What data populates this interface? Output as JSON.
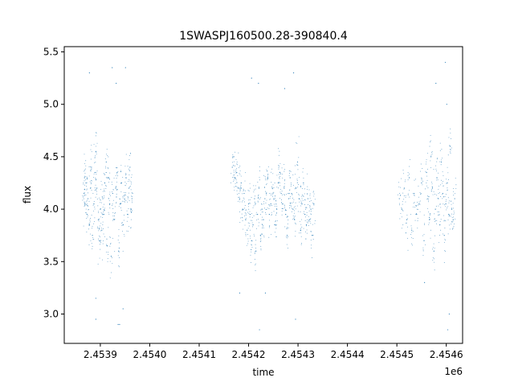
{
  "chart_data": {
    "type": "scatter",
    "title": "1SWASPJ160500.28-390840.4",
    "xlabel": "time",
    "ylabel": "flux",
    "x_offset_label": "1e6",
    "xlim": [
      2453827,
      2454633
    ],
    "ylim": [
      2.72,
      5.55
    ],
    "x_ticks": [
      2453900,
      2454000,
      2454100,
      2454200,
      2454300,
      2454400,
      2454500,
      2454600
    ],
    "x_tick_labels": [
      "2.4539",
      "2.4540",
      "2.4541",
      "2.4542",
      "2.4543",
      "2.4544",
      "2.4545",
      "2.4546"
    ],
    "y_ticks": [
      3.0,
      3.5,
      4.0,
      4.5,
      5.0,
      5.5
    ],
    "y_tick_labels": [
      "3.0",
      "3.5",
      "4.0",
      "4.5",
      "5.0",
      "5.5"
    ],
    "grid": false,
    "marker_color": "#1f77b4",
    "series": [
      {
        "x": [
          2453867,
          2453868,
          2453869,
          2453871,
          2453873,
          2453875,
          2453878,
          2453880,
          2453882,
          2453884,
          2453887,
          2453889,
          2453891,
          2453893,
          2453896,
          2453898,
          2453900,
          2453903,
          2453905,
          2453907,
          2453909,
          2453912,
          2453914,
          2453917,
          2453919,
          2453922,
          2453925,
          2453928,
          2453931,
          2453934,
          2453937,
          2453940,
          2453943,
          2453946,
          2453949,
          2453952,
          2453955,
          2453958,
          2453960,
          2453962,
          2453964
        ],
        "y": [
          4.15,
          4.3,
          4.05,
          4.25,
          3.95,
          4.1,
          3.85,
          4.2,
          4.4,
          3.75,
          4.05,
          4.35,
          4.55,
          4.2,
          3.9,
          3.7,
          4.0,
          3.8,
          4.1,
          3.95,
          4.25,
          4.45,
          3.65,
          4.3,
          4.05,
          3.55,
          4.15,
          3.9,
          4.2,
          4.35,
          3.6,
          4.05,
          4.25,
          3.85,
          4.1,
          4.3,
          3.95,
          4.2,
          4.4,
          4.0,
          4.1
        ]
      },
      {
        "x": [
          2454167,
          2454170,
          2454173,
          2454176,
          2454179,
          2454182,
          2454185,
          2454188,
          2454191,
          2454194,
          2454197,
          2454200,
          2454203,
          2454206,
          2454209,
          2454212,
          2454215,
          2454218,
          2454221,
          2454224,
          2454227,
          2454230,
          2454233,
          2454236,
          2454239,
          2454242,
          2454245,
          2454248,
          2454251,
          2454254,
          2454257,
          2454260,
          2454263,
          2454266,
          2454269,
          2454272,
          2454275,
          2454278,
          2454281,
          2454284,
          2454287,
          2454290,
          2454293,
          2454296,
          2454299,
          2454302,
          2454305,
          2454308,
          2454311,
          2454314,
          2454317,
          2454320,
          2454323,
          2454326,
          2454329,
          2454332
        ],
        "y": [
          4.4,
          4.5,
          4.3,
          4.35,
          4.2,
          4.1,
          4.25,
          4.0,
          4.15,
          3.9,
          3.8,
          4.05,
          3.95,
          3.7,
          3.85,
          4.1,
          3.6,
          3.95,
          4.2,
          3.75,
          4.0,
          3.9,
          4.1,
          4.15,
          4.3,
          3.95,
          4.05,
          4.2,
          4.1,
          3.85,
          4.0,
          4.25,
          4.35,
          4.15,
          4.05,
          4.2,
          3.95,
          3.75,
          4.1,
          4.3,
          4.15,
          4.0,
          3.9,
          4.2,
          4.45,
          4.1,
          3.8,
          4.05,
          4.25,
          3.95,
          3.85,
          4.1,
          3.9,
          4.0,
          3.75,
          4.05
        ]
      },
      {
        "x": [
          2454505,
          2454510,
          2454515,
          2454520,
          2454525,
          2454530,
          2454535,
          2454540,
          2454545,
          2454550,
          2454555,
          2454560,
          2454563,
          2454566,
          2454569,
          2454572,
          2454575,
          2454578,
          2454581,
          2454584,
          2454587,
          2454590,
          2454593,
          2454596,
          2454599,
          2454602,
          2454605,
          2454608,
          2454611,
          2454614,
          2454617
        ],
        "y": [
          4.1,
          4.0,
          4.2,
          3.9,
          4.3,
          3.8,
          4.15,
          3.95,
          4.05,
          4.25,
          3.7,
          4.35,
          4.1,
          3.9,
          4.5,
          4.2,
          3.6,
          4.0,
          4.3,
          4.1,
          3.85,
          4.45,
          4.15,
          3.75,
          4.05,
          4.25,
          3.95,
          4.6,
          4.0,
          3.9,
          4.1
        ]
      }
    ],
    "outliers": {
      "x": [
        2453878,
        2453891,
        2453924,
        2453936,
        2453951,
        2453946,
        2453939,
        2454206,
        2454222,
        2454234,
        2454273,
        2454291,
        2454295,
        2454579,
        2454598,
        2454603,
        2454606,
        2454601,
        2453891,
        2453932,
        2454220,
        2454182,
        2454556
      ],
      "y": [
        5.3,
        2.95,
        5.35,
        2.9,
        5.35,
        3.05,
        2.9,
        5.25,
        2.85,
        3.2,
        5.15,
        5.3,
        2.95,
        5.2,
        5.4,
        2.85,
        3.0,
        5.0,
        3.15,
        5.2,
        5.2,
        3.2,
        3.3
      ]
    }
  }
}
